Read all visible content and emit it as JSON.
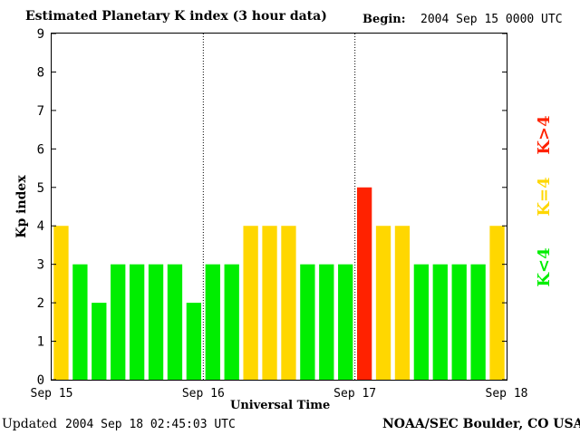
{
  "header": {
    "title": "Estimated Planetary K index (3 hour data)",
    "begin_label": "Begin:",
    "begin_value": "2004 Sep 15 0000 UTC"
  },
  "footer": {
    "updated_label": "Updated",
    "updated_value": "2004 Sep 18 02:45:03 UTC",
    "source": "NOAA/SEC Boulder, CO USA"
  },
  "legend": {
    "low": "K<4",
    "mid": "K=4",
    "high": "K>4"
  },
  "colors": {
    "low": "#00ee00",
    "mid": "#ffd700",
    "high": "#ff2200"
  },
  "chart_data": {
    "type": "bar",
    "title": "Estimated Planetary K index (3 hour data)",
    "xlabel": "Universal Time",
    "ylabel": "Kp index",
    "ylim": [
      0,
      9
    ],
    "yticks": [
      "0",
      "1",
      "2",
      "3",
      "4",
      "5",
      "6",
      "7",
      "8",
      "9"
    ],
    "xticks": [
      "Sep 15",
      "Sep 16",
      "Sep 17",
      "Sep 18"
    ],
    "day_separators": [
      "Sep 16",
      "Sep 17"
    ],
    "values": [
      4,
      3,
      2,
      3,
      3,
      3,
      3,
      2,
      3,
      3,
      4,
      4,
      4,
      3,
      3,
      3,
      5,
      4,
      4,
      3,
      3,
      3,
      3,
      4
    ],
    "bar_rule": "color by value: below 4 green, equal to 4 yellow, above 4 red"
  }
}
